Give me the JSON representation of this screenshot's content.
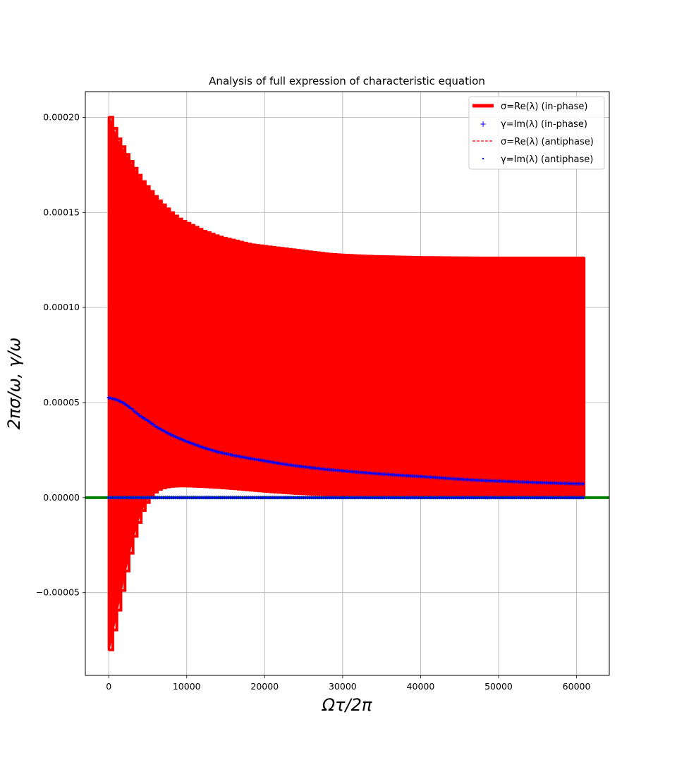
{
  "chart_data": {
    "type": "line",
    "title": "Analysis of full expression of characteristic equation",
    "xlabel": "Ωτ/2π",
    "ylabel": "2πσ/ω, γ/ω",
    "xlim": [
      -3000,
      64200
    ],
    "ylim": [
      -9.35e-05,
      0.0002135
    ],
    "xticks": [
      0,
      10000,
      20000,
      30000,
      40000,
      50000,
      60000
    ],
    "xtick_labels": [
      "0",
      "10000",
      "20000",
      "30000",
      "40000",
      "50000",
      "60000"
    ],
    "yticks": [
      -5e-05,
      0.0,
      5e-05,
      0.0001,
      0.00015,
      0.0002
    ],
    "ytick_labels": [
      "−0.00005",
      "0.00000",
      "0.00005",
      "0.00010",
      "0.00015",
      "0.00020"
    ],
    "grid": true,
    "legend_position": "top-right",
    "legend": [
      {
        "label": "σ=Re(λ) (in-phase)",
        "style": "thick-line",
        "color": "#ff0000"
      },
      {
        "label": "γ=Im(λ) (in-phase)",
        "style": "plus-marker",
        "color": "#0000ff"
      },
      {
        "label": "σ=Re(λ) (antiphase)",
        "style": "dashed-line",
        "color": "#ff0000"
      },
      {
        "label": "γ=Im(λ) (antiphase)",
        "style": "dot-marker",
        "color": "#0000ff"
      }
    ],
    "series": [
      {
        "name": "σ=Re(λ) (in-phase)",
        "color": "#ff0000",
        "kind": "oscillation-envelope",
        "x": [
          0,
          1000,
          2000,
          3000,
          4000,
          5000,
          6000,
          7000,
          8000,
          9000,
          10000,
          12000,
          14000,
          16000,
          18000,
          20000,
          22000,
          24000,
          26000,
          28000,
          30000,
          32500,
          35000,
          37500,
          40000,
          42500,
          45000,
          47500,
          50000,
          52500,
          55000,
          57500,
          60000,
          61000
        ],
        "upper": [
          0.0002,
          0.000189,
          0.000181,
          0.000174,
          0.000167,
          0.000162,
          0.000157,
          0.000153,
          0.000149,
          0.000146,
          0.000144,
          0.00014,
          0.000137,
          0.000135,
          0.000133,
          0.000132,
          0.000131,
          0.00013,
          0.000129,
          0.000128,
          0.0001275,
          0.000127,
          0.0001267,
          0.0001265,
          0.0001263,
          0.0001262,
          0.0001261,
          0.000126,
          0.000126,
          0.000126,
          0.000126,
          0.000126,
          0.000126,
          0.000126
        ],
        "lower": [
          -8e-05,
          -6e-05,
          -4e-05,
          -2.2e-05,
          -8e-06,
          0.0,
          4e-06,
          5.5e-06,
          6e-06,
          6.2e-06,
          6.1e-06,
          5.8e-06,
          5.3e-06,
          4.7e-06,
          4e-06,
          3.3e-06,
          2.7e-06,
          2.2e-06,
          1.8e-06,
          1.4e-06,
          1.1e-06,
          8e-07,
          6e-07,
          4e-07,
          3e-07,
          2e-07,
          2e-07,
          1e-07,
          1e-07,
          1e-07,
          0.0,
          0.0,
          0.0,
          0.0
        ]
      },
      {
        "name": "γ=Im(λ) (in-phase)",
        "color": "#0000ff",
        "x": [
          0,
          1000,
          2000,
          3000,
          4000,
          5000,
          6000,
          7000,
          8000,
          9000,
          10000,
          12000,
          14000,
          16000,
          18000,
          20000,
          22000,
          24000,
          26000,
          28000,
          30000,
          32500,
          35000,
          37500,
          40000,
          42500,
          45000,
          47500,
          50000,
          52500,
          55000,
          57500,
          60000,
          61000
        ],
        "values": [
          5.25e-05,
          5.15e-05,
          4.95e-05,
          4.65e-05,
          4.3e-05,
          4.05e-05,
          3.75e-05,
          3.52e-05,
          3.3e-05,
          3.12e-05,
          2.95e-05,
          2.65e-05,
          2.4e-05,
          2.22e-05,
          2.07e-05,
          1.93e-05,
          1.79e-05,
          1.67e-05,
          1.57e-05,
          1.48e-05,
          1.41e-05,
          1.32e-05,
          1.24e-05,
          1.17e-05,
          1.11e-05,
          1.04e-05,
          9.7e-06,
          9.1e-06,
          8.7e-06,
          8.3e-06,
          7.9e-06,
          7.6e-06,
          7.3e-06,
          7.2e-06
        ]
      },
      {
        "name": "γ=Im(λ) (in-phase), zero branch",
        "color": "#0000ff",
        "x": [
          0,
          61000
        ],
        "values": [
          0.0,
          0.0
        ]
      },
      {
        "name": "y=0 reference",
        "color": "#008000",
        "x": [
          -3000,
          64200
        ],
        "values": [
          0.0,
          0.0
        ]
      }
    ]
  }
}
